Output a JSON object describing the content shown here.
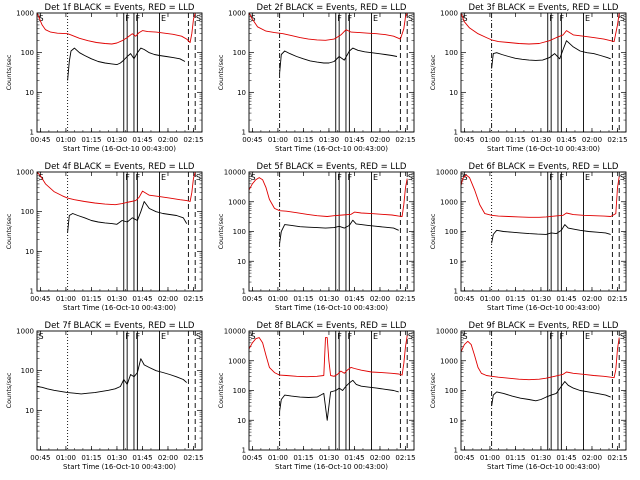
{
  "shared": {
    "xlabel": "Start Time (16-Oct-10 00:43:00)",
    "ylabel": "Counts/sec",
    "x_tick_labels": [
      "00:45",
      "01:00",
      "01:15",
      "01:30",
      "01:45",
      "02:00",
      "02:15"
    ],
    "x_tick_minutes": [
      2,
      17,
      32,
      47,
      62,
      77,
      92
    ],
    "x_range_minutes": [
      0,
      97
    ],
    "y_scale": "log",
    "marker_labels": {
      "S": "S",
      "F": "F",
      "E": "E"
    },
    "colors": {
      "events": "#000000",
      "lld": "#e00000",
      "axes": "#000000"
    },
    "marker_minutes": {
      "s_dotted": 18,
      "f1": 51,
      "f2": 53,
      "f3": 57,
      "f4": 59,
      "e1": 72,
      "e2": 89,
      "s2": 93
    }
  },
  "chart_data": [
    {
      "type": "line",
      "title": "Det 1f BLACK = Events, RED = LLD",
      "y_ticks": [
        "1",
        "10",
        "100",
        "1000"
      ],
      "ylim": [
        1,
        1000
      ],
      "s_style": "dotted",
      "series": [
        {
          "key": "events",
          "x": [
            18,
            19,
            20,
            22,
            25,
            28,
            32,
            36,
            40,
            44,
            47,
            49,
            51,
            53,
            55,
            57,
            59,
            61,
            63,
            66,
            69,
            72,
            76,
            80,
            84,
            87
          ],
          "y": [
            20,
            60,
            110,
            130,
            100,
            85,
            70,
            60,
            55,
            52,
            50,
            55,
            65,
            80,
            95,
            70,
            100,
            130,
            120,
            100,
            90,
            85,
            80,
            75,
            70,
            60
          ]
        },
        {
          "key": "lld",
          "x": [
            0,
            1,
            3,
            5,
            8,
            12,
            18,
            20,
            25,
            30,
            35,
            40,
            44,
            47,
            50,
            53,
            56,
            58,
            60,
            62,
            65,
            70,
            75,
            80,
            85,
            88,
            90,
            91,
            92,
            93
          ],
          "y": [
            1000,
            800,
            500,
            380,
            330,
            310,
            300,
            280,
            230,
            200,
            180,
            170,
            165,
            175,
            200,
            240,
            300,
            260,
            320,
            360,
            340,
            330,
            310,
            290,
            260,
            220,
            180,
            300,
            700,
            1000
          ]
        }
      ]
    },
    {
      "type": "line",
      "title": "Det 2f BLACK = Events, RED = LLD",
      "y_ticks": [
        "1",
        "10",
        "100",
        "1000"
      ],
      "ylim": [
        1,
        1000
      ],
      "s_style": "dash-dot",
      "series": [
        {
          "key": "events",
          "x": [
            18,
            19,
            21,
            24,
            28,
            32,
            36,
            40,
            44,
            47,
            50,
            53,
            56,
            59,
            61,
            64,
            68,
            72,
            76,
            80,
            84,
            87
          ],
          "y": [
            30,
            90,
            110,
            95,
            80,
            70,
            62,
            58,
            55,
            55,
            60,
            80,
            65,
            110,
            130,
            115,
            105,
            100,
            95,
            90,
            85,
            80
          ]
        },
        {
          "key": "lld",
          "x": [
            0,
            2,
            5,
            10,
            15,
            20,
            25,
            30,
            35,
            40,
            45,
            50,
            54,
            57,
            60,
            65,
            70,
            75,
            80,
            85,
            89,
            91,
            92,
            93
          ],
          "y": [
            1000,
            700,
            450,
            350,
            320,
            300,
            270,
            240,
            220,
            210,
            205,
            220,
            280,
            380,
            330,
            320,
            310,
            300,
            285,
            260,
            220,
            400,
            800,
            1000
          ]
        }
      ]
    },
    {
      "type": "line",
      "title": "Det 3f BLACK = Events, RED = LLD",
      "y_ticks": [
        "1",
        "10",
        "100",
        "1000"
      ],
      "ylim": [
        1,
        1000
      ],
      "s_style": "dash-dot",
      "series": [
        {
          "key": "events",
          "x": [
            18,
            19,
            21,
            24,
            28,
            32,
            36,
            40,
            44,
            48,
            52,
            55,
            58,
            60,
            62,
            66,
            70,
            74,
            78,
            82,
            86,
            88
          ],
          "y": [
            40,
            95,
            100,
            90,
            80,
            72,
            68,
            65,
            64,
            65,
            75,
            95,
            70,
            120,
            200,
            140,
            110,
            100,
            95,
            85,
            75,
            70
          ]
        },
        {
          "key": "lld",
          "x": [
            0,
            2,
            5,
            10,
            15,
            18,
            22,
            28,
            34,
            40,
            46,
            52,
            56,
            60,
            62,
            66,
            72,
            78,
            84,
            88,
            90,
            92,
            93
          ],
          "y": [
            1000,
            600,
            420,
            300,
            240,
            210,
            190,
            180,
            170,
            165,
            170,
            200,
            240,
            280,
            360,
            280,
            260,
            240,
            220,
            200,
            190,
            500,
            1000
          ]
        }
      ]
    },
    {
      "type": "line",
      "title": "Det 4f BLACK = Events, RED = LLD",
      "y_ticks": [
        "1",
        "10",
        "100",
        "1000"
      ],
      "ylim": [
        1,
        1000
      ],
      "s_style": "dotted",
      "series": [
        {
          "key": "events",
          "x": [
            18,
            19,
            21,
            24,
            28,
            32,
            36,
            40,
            44,
            47,
            50,
            53,
            56,
            59,
            61,
            63,
            66,
            70,
            74,
            78,
            82,
            86,
            88
          ],
          "y": [
            30,
            80,
            90,
            80,
            70,
            60,
            55,
            52,
            50,
            48,
            60,
            55,
            70,
            60,
            100,
            180,
            120,
            100,
            90,
            85,
            80,
            70,
            50
          ]
        },
        {
          "key": "lld",
          "x": [
            0,
            2,
            5,
            10,
            15,
            18,
            22,
            28,
            34,
            40,
            46,
            50,
            54,
            58,
            60,
            62,
            66,
            72,
            78,
            84,
            88,
            90,
            91,
            92,
            93
          ],
          "y": [
            1000,
            800,
            500,
            320,
            250,
            220,
            200,
            180,
            165,
            155,
            150,
            160,
            175,
            190,
            230,
            330,
            260,
            240,
            220,
            200,
            190,
            180,
            300,
            700,
            1000
          ]
        }
      ]
    },
    {
      "type": "line",
      "title": "Det 5f BLACK = Events, RED = LLD",
      "y_ticks": [
        "1",
        "10",
        "100",
        "1000",
        "10000"
      ],
      "ylim": [
        1,
        10000
      ],
      "s_style": "dash-dot",
      "series": [
        {
          "key": "events",
          "x": [
            18,
            19,
            21,
            25,
            30,
            35,
            40,
            45,
            50,
            53,
            56,
            59,
            61,
            63,
            66,
            70,
            75,
            80,
            85,
            88
          ],
          "y": [
            40,
            100,
            170,
            160,
            145,
            140,
            135,
            130,
            135,
            150,
            130,
            160,
            240,
            180,
            170,
            160,
            150,
            140,
            130,
            110
          ]
        },
        {
          "key": "lld",
          "x": [
            0,
            2,
            4,
            6,
            8,
            10,
            12,
            15,
            18,
            22,
            28,
            34,
            40,
            46,
            50,
            55,
            60,
            62,
            66,
            72,
            78,
            84,
            88,
            90,
            91,
            92,
            93
          ],
          "y": [
            2500,
            4000,
            5500,
            6500,
            5500,
            3000,
            1200,
            600,
            500,
            480,
            430,
            380,
            340,
            320,
            340,
            360,
            380,
            450,
            420,
            400,
            380,
            360,
            330,
            320,
            800,
            3000,
            6000
          ]
        }
      ]
    },
    {
      "type": "line",
      "title": "Det 6f BLACK = Events, RED = LLD",
      "y_ticks": [
        "1",
        "10",
        "100",
        "1000",
        "10000"
      ],
      "ylim": [
        1,
        10000
      ],
      "s_style": "dotted",
      "series": [
        {
          "key": "events",
          "x": [
            18,
            19,
            21,
            25,
            30,
            35,
            40,
            45,
            50,
            53,
            56,
            59,
            61,
            63,
            66,
            70,
            75,
            80,
            85,
            88
          ],
          "y": [
            40,
            80,
            110,
            100,
            95,
            90,
            85,
            82,
            80,
            90,
            85,
            110,
            170,
            130,
            120,
            110,
            100,
            95,
            90,
            80
          ]
        },
        {
          "key": "lld",
          "x": [
            0,
            1,
            3,
            5,
            8,
            11,
            14,
            18,
            22,
            28,
            34,
            40,
            46,
            50,
            55,
            60,
            62,
            66,
            72,
            78,
            84,
            88,
            91,
            92,
            93
          ],
          "y": [
            3500,
            6000,
            8000,
            6500,
            2500,
            800,
            400,
            350,
            330,
            320,
            310,
            300,
            300,
            310,
            330,
            350,
            420,
            370,
            350,
            340,
            330,
            320,
            400,
            3000,
            7000
          ]
        }
      ]
    },
    {
      "type": "line",
      "title": "Det 7f BLACK = Events, RED = LLD",
      "y_ticks": [
        "10",
        "100",
        "1000"
      ],
      "ylim": [
        1,
        1000
      ],
      "s_style": "dotted",
      "series": [
        {
          "key": "events",
          "x": [
            0,
            3,
            6,
            10,
            14,
            18,
            22,
            26,
            30,
            34,
            38,
            42,
            46,
            49,
            51,
            53,
            55,
            57,
            59,
            61,
            63,
            66,
            70,
            74,
            78,
            82,
            86,
            88
          ],
          "y": [
            40,
            38,
            35,
            32,
            30,
            28,
            27,
            26,
            27,
            28,
            30,
            32,
            35,
            40,
            60,
            45,
            80,
            70,
            90,
            200,
            140,
            120,
            100,
            90,
            80,
            70,
            60,
            50
          ]
        }
      ]
    },
    {
      "type": "line",
      "title": "Det 8f BLACK = Events, RED = LLD",
      "y_ticks": [
        "1",
        "10",
        "100",
        "1000",
        "10000"
      ],
      "ylim": [
        1,
        10000
      ],
      "s_style": "dash-dot",
      "series": [
        {
          "key": "events",
          "x": [
            18,
            19,
            21,
            25,
            30,
            35,
            40,
            44,
            46,
            48,
            51,
            53,
            55,
            57,
            59,
            61,
            63,
            66,
            70,
            75,
            80,
            85,
            88
          ],
          "y": [
            20,
            50,
            70,
            65,
            60,
            58,
            60,
            80,
            10,
            90,
            100,
            120,
            100,
            140,
            180,
            220,
            160,
            140,
            130,
            120,
            110,
            100,
            90
          ]
        },
        {
          "key": "lld",
          "x": [
            0,
            2,
            4,
            6,
            8,
            10,
            12,
            15,
            18,
            22,
            28,
            34,
            40,
            44,
            45,
            46,
            47,
            48,
            50,
            52,
            54,
            56,
            58,
            60,
            62,
            66,
            72,
            78,
            84,
            88,
            90,
            91,
            92,
            93
          ],
          "y": [
            2500,
            4000,
            5500,
            6000,
            4000,
            1500,
            600,
            400,
            330,
            320,
            300,
            290,
            300,
            320,
            6000,
            6000,
            1000,
            320,
            300,
            350,
            450,
            380,
            500,
            600,
            550,
            480,
            420,
            400,
            380,
            360,
            330,
            800,
            3000,
            7000
          ]
        }
      ]
    },
    {
      "type": "line",
      "title": "Det 9f BLACK = Events, RED = LLD",
      "y_ticks": [
        "1",
        "10",
        "100",
        "1000",
        "10000"
      ],
      "ylim": [
        1,
        10000
      ],
      "s_style": "dash-dot",
      "series": [
        {
          "key": "events",
          "x": [
            18,
            19,
            21,
            25,
            30,
            35,
            40,
            44,
            47,
            50,
            53,
            56,
            59,
            61,
            63,
            66,
            70,
            75,
            80,
            85,
            88
          ],
          "y": [
            30,
            70,
            90,
            80,
            65,
            55,
            50,
            45,
            50,
            60,
            70,
            80,
            140,
            200,
            150,
            120,
            100,
            90,
            80,
            70,
            60
          ]
        },
        {
          "key": "lld",
          "x": [
            0,
            2,
            4,
            6,
            8,
            10,
            12,
            15,
            18,
            22,
            28,
            34,
            40,
            46,
            50,
            55,
            60,
            62,
            66,
            72,
            78,
            84,
            88,
            90,
            91,
            92,
            93
          ],
          "y": [
            2000,
            3500,
            4500,
            3500,
            1500,
            600,
            380,
            320,
            300,
            280,
            260,
            240,
            230,
            240,
            260,
            300,
            350,
            420,
            380,
            350,
            320,
            300,
            280,
            270,
            500,
            2500,
            6000
          ]
        }
      ]
    }
  ]
}
